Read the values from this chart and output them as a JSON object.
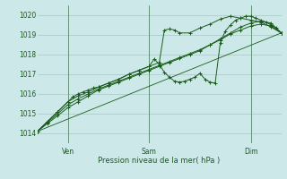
{
  "xlabel": "Pression niveau de la mer( hPa )",
  "bg_color": "#cce8e8",
  "grid_color": "#99cccc",
  "line_color": "#1a5c1a",
  "ylim": [
    1013.5,
    1020.5
  ],
  "xlim": [
    0,
    48
  ],
  "ven_x": 6,
  "sam_x": 22,
  "dim_x": 42,
  "yticks": [
    1014,
    1015,
    1016,
    1017,
    1018,
    1019,
    1020
  ],
  "trend_x": [
    0,
    48
  ],
  "trend_y": [
    1014.1,
    1019.1
  ],
  "s1_x": [
    0,
    2,
    4,
    6,
    8,
    10,
    12,
    14,
    16,
    18,
    20,
    22,
    24,
    26,
    28,
    30,
    32,
    34,
    36,
    38,
    40,
    42,
    44,
    46,
    48
  ],
  "s1_y": [
    1014.1,
    1014.5,
    1014.9,
    1015.3,
    1015.6,
    1015.9,
    1016.2,
    1016.4,
    1016.6,
    1016.8,
    1017.0,
    1017.2,
    1017.4,
    1017.6,
    1017.8,
    1018.0,
    1018.2,
    1018.5,
    1018.8,
    1019.1,
    1019.4,
    1019.6,
    1019.7,
    1019.6,
    1019.1
  ],
  "s2_x": [
    0,
    2,
    4,
    6,
    7,
    8,
    9,
    10,
    11,
    12,
    14,
    16,
    18,
    20,
    22,
    23,
    24,
    25,
    26,
    27,
    28,
    29,
    30,
    31,
    32,
    33,
    34,
    35,
    36,
    37,
    38,
    39,
    40,
    41,
    42,
    43,
    44,
    45,
    46,
    47,
    48
  ],
  "s2_y": [
    1014.1,
    1014.6,
    1015.1,
    1015.6,
    1015.85,
    1016.0,
    1016.1,
    1016.2,
    1016.3,
    1016.35,
    1016.55,
    1016.75,
    1017.0,
    1017.2,
    1017.4,
    1017.78,
    1017.5,
    1017.1,
    1016.85,
    1016.65,
    1016.6,
    1016.65,
    1016.75,
    1016.85,
    1017.05,
    1016.75,
    1016.6,
    1016.55,
    1018.6,
    1019.2,
    1019.5,
    1019.75,
    1019.85,
    1019.95,
    1019.95,
    1019.85,
    1019.75,
    1019.65,
    1019.5,
    1019.35,
    1019.1
  ],
  "s3_x": [
    0,
    2,
    4,
    6,
    8,
    10,
    12,
    14,
    16,
    18,
    20,
    22,
    24,
    25,
    26,
    27,
    28,
    30,
    32,
    34,
    36,
    38,
    40,
    42,
    44,
    46,
    48
  ],
  "s3_y": [
    1014.1,
    1014.6,
    1015.1,
    1015.6,
    1015.9,
    1016.1,
    1016.35,
    1016.55,
    1016.75,
    1017.0,
    1017.2,
    1017.4,
    1017.6,
    1019.25,
    1019.3,
    1019.25,
    1019.1,
    1019.1,
    1019.35,
    1019.55,
    1019.8,
    1019.95,
    1019.85,
    1019.75,
    1019.65,
    1019.4,
    1019.1
  ],
  "s4_x": [
    0,
    2,
    4,
    6,
    8,
    10,
    12,
    14,
    16,
    18,
    20,
    22,
    24,
    26,
    28,
    30,
    32,
    34,
    36,
    38,
    40,
    42,
    44,
    46,
    48
  ],
  "s4_y": [
    1014.1,
    1014.55,
    1015.0,
    1015.45,
    1015.75,
    1016.0,
    1016.25,
    1016.45,
    1016.65,
    1016.85,
    1017.05,
    1017.25,
    1017.45,
    1017.65,
    1017.85,
    1018.05,
    1018.25,
    1018.5,
    1018.75,
    1019.05,
    1019.25,
    1019.45,
    1019.55,
    1019.45,
    1019.1
  ]
}
